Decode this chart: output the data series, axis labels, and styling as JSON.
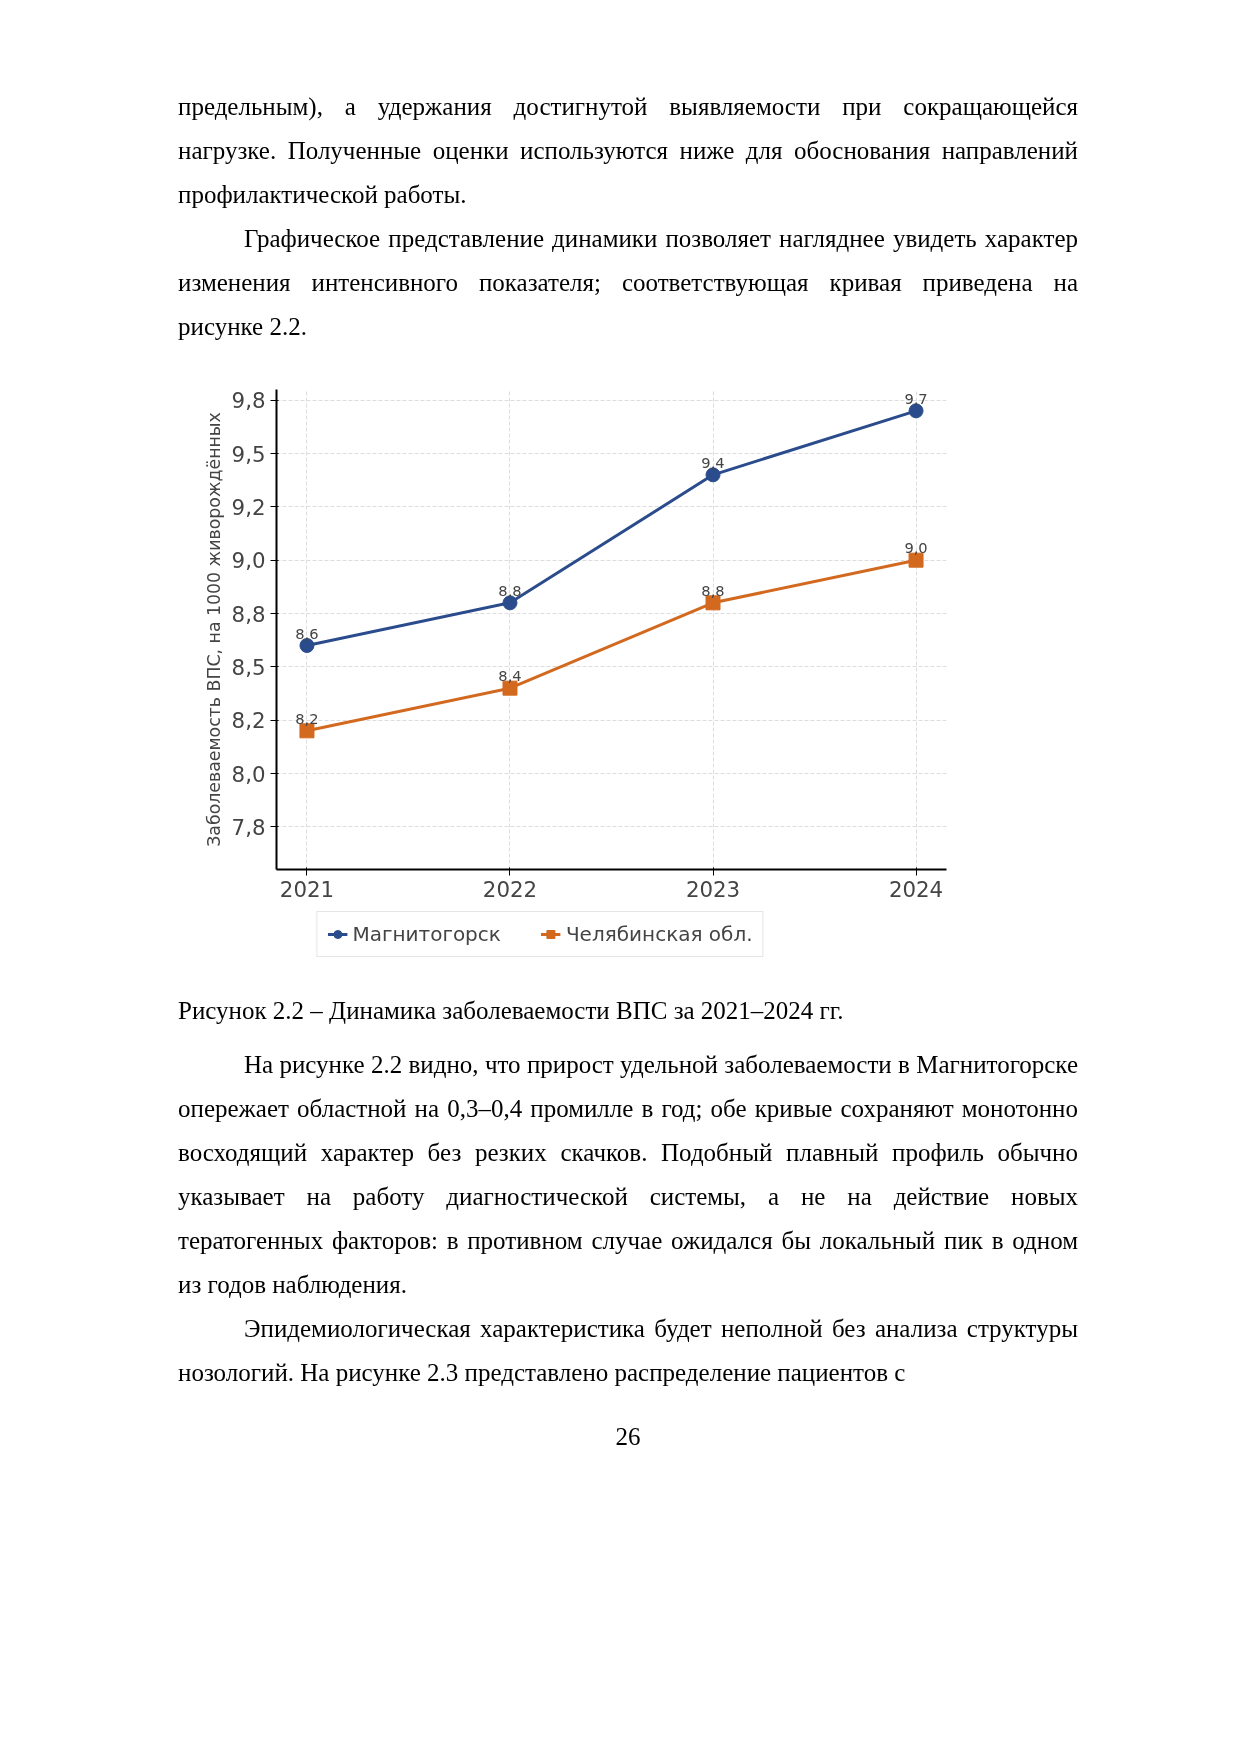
{
  "chart_data": {
    "type": "line",
    "title": "Рисунок 2.2 – Динамика заболеваемости ВПС за 2021–2024 гг.",
    "ylabel": "Заболеваемость ВПС, на 1000 живорождённых",
    "x": [
      2021,
      2022,
      2023,
      2024
    ],
    "series": [
      {
        "name": "Магнитогорск",
        "color": "#2b4c8c",
        "values": [
          8.6,
          8.8,
          9.4,
          9.7
        ],
        "value_labels": [
          "8,6",
          "8,8",
          "9,4",
          "9,7"
        ],
        "marker": "circle"
      },
      {
        "name": "Челябинская обл.",
        "color": "#d2691e",
        "values": [
          8.2,
          8.4,
          8.8,
          9.0
        ],
        "value_labels": [
          "8,2",
          "8,4",
          "8,8",
          "9,0"
        ],
        "marker": "square"
      }
    ],
    "xlim": [
      2020.85,
      2024.15
    ],
    "xticks": [
      2021,
      2022,
      2023,
      2024
    ],
    "ylim": [
      7.55,
      9.8
    ],
    "yticks": [
      {
        "value": 7.75,
        "label": "7,8"
      },
      {
        "value": 8.0,
        "label": "8,0"
      },
      {
        "value": 8.25,
        "label": "8,2"
      },
      {
        "value": 8.5,
        "label": "8,5"
      },
      {
        "value": 8.75,
        "label": "8,8"
      },
      {
        "value": 9.0,
        "label": "9,0"
      },
      {
        "value": 9.25,
        "label": "9,2"
      },
      {
        "value": 9.5,
        "label": "9,5"
      },
      {
        "value": 9.75,
        "label": "9,8"
      }
    ],
    "grid": true,
    "legend": "bottom",
    "data_labels": true,
    "line_style": "solid",
    "annotations": [
      "предельным), а удержания достигнутой выявляемости при сокращающейся нагрузке. Полученные оценки используются ниже для обоснования направлений профилактической работы.",
      "Графическое представление динамики позволяет нагляднее увидеть характер изменения интенсивного показателя; соответствующая кривая приведена на рисунке 2.2.",
      "На рисунке 2.2 видно, что прирост удельной заболеваемости в Магнитогорске опережает областной на 0,3–0,4 промилле в год; обе кривые сохраняют монотонно восходящий характер без резких скачков. Подобный плавный профиль обычно указывает на работу диагностической системы, а не на действие новых тератогенных факторов: в противном случае ожидался бы локальный пик в одном из годов наблюдения.",
      "Эпидемиологическая характеристика будет неполной без анализа структуры нозологий. На рисунке 2.3 представлено распределение пациентов с",
      "26"
    ]
  }
}
